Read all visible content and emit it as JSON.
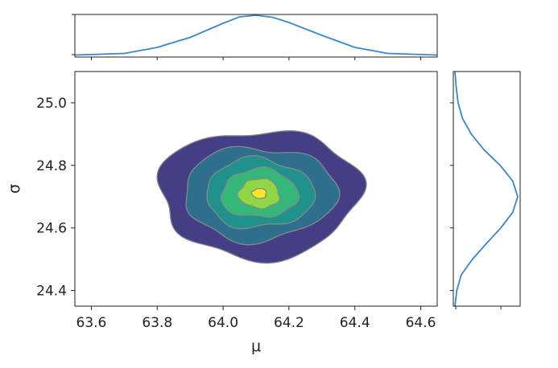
{
  "chart_data": [
    {
      "type": "contour",
      "panel": "joint",
      "xlabel": "μ",
      "ylabel": "σ",
      "xlim": [
        63.55,
        64.65
      ],
      "ylim": [
        24.35,
        25.1
      ],
      "xticks": [
        "63.6",
        "63.8",
        "64.0",
        "64.2",
        "64.4",
        "64.6"
      ],
      "yticks": [
        "24.4",
        "24.6",
        "24.8",
        "25.0"
      ],
      "grid": false,
      "center": {
        "x": 64.11,
        "y": 24.71
      },
      "levels": [
        {
          "level": 1,
          "rx": 0.305,
          "ry": 0.205,
          "fill": "#433e85"
        },
        {
          "level": 2,
          "rx": 0.23,
          "ry": 0.15,
          "fill": "#2e6f8e"
        },
        {
          "level": 3,
          "rx": 0.165,
          "ry": 0.11,
          "fill": "#21918c"
        },
        {
          "level": 4,
          "rx": 0.115,
          "ry": 0.078,
          "fill": "#35b779"
        },
        {
          "level": 5,
          "rx": 0.062,
          "ry": 0.047,
          "fill": "#8fd744"
        },
        {
          "level": 6,
          "rx": 0.022,
          "ry": 0.016,
          "fill": "#fde725"
        }
      ],
      "contour_line_color": "#888888"
    },
    {
      "type": "line",
      "panel": "marginal-x",
      "series": [
        {
          "x": [
            63.55,
            63.7,
            63.8,
            63.9,
            64.0,
            64.05,
            64.1,
            64.15,
            64.2,
            64.3,
            64.4,
            64.5,
            64.65
          ],
          "values": [
            0.01,
            0.05,
            0.2,
            0.45,
            0.8,
            0.96,
            1.0,
            0.95,
            0.82,
            0.5,
            0.2,
            0.05,
            0.01
          ]
        }
      ],
      "color": "#3a87c8"
    },
    {
      "type": "line",
      "panel": "marginal-y",
      "series": [
        {
          "y": [
            24.35,
            24.4,
            24.45,
            24.5,
            24.55,
            24.6,
            24.65,
            24.7,
            24.75,
            24.8,
            24.85,
            24.9,
            24.95,
            25.0,
            25.05,
            25.1
          ],
          "values": [
            0.0,
            0.03,
            0.1,
            0.28,
            0.5,
            0.73,
            0.92,
            1.0,
            0.92,
            0.72,
            0.46,
            0.26,
            0.12,
            0.05,
            0.02,
            0.0
          ]
        }
      ],
      "color": "#3a87c8"
    }
  ]
}
